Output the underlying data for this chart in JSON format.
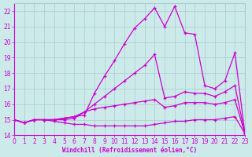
{
  "xlabel": "Windchill (Refroidissement éolien,°C)",
  "xlim": [
    0,
    23
  ],
  "ylim": [
    14,
    22.5
  ],
  "yticks": [
    14,
    15,
    16,
    17,
    18,
    19,
    20,
    21,
    22
  ],
  "xticks": [
    0,
    1,
    2,
    3,
    4,
    5,
    6,
    7,
    8,
    9,
    10,
    11,
    12,
    13,
    14,
    15,
    16,
    17,
    18,
    19,
    20,
    21,
    22,
    23
  ],
  "background_color": "#cceaea",
  "grid_color": "#aacccc",
  "line_color": "#cc00cc",
  "curve1": [
    15.0,
    14.8,
    15.0,
    15.0,
    15.0,
    15.1,
    15.2,
    15.3,
    16.7,
    17.8,
    18.8,
    19.9,
    20.9,
    21.5,
    22.2,
    21.0,
    22.3,
    20.6,
    20.5,
    17.2,
    17.0,
    17.5,
    19.3,
    14.1
  ],
  "curve2": [
    15.0,
    14.8,
    15.0,
    15.0,
    15.0,
    15.1,
    15.2,
    15.5,
    16.0,
    16.5,
    17.0,
    17.5,
    18.0,
    18.5,
    19.2,
    16.4,
    16.5,
    16.8,
    16.7,
    16.7,
    16.5,
    16.8,
    17.2,
    14.1
  ],
  "curve3": [
    15.0,
    14.8,
    15.0,
    15.0,
    15.0,
    15.0,
    15.1,
    15.5,
    15.7,
    15.8,
    15.9,
    16.0,
    16.1,
    16.2,
    16.3,
    15.8,
    15.9,
    16.1,
    16.1,
    16.1,
    16.0,
    16.1,
    16.3,
    14.1
  ],
  "curve4": [
    15.0,
    14.8,
    15.0,
    15.0,
    14.9,
    14.8,
    14.7,
    14.7,
    14.6,
    14.6,
    14.6,
    14.6,
    14.6,
    14.6,
    14.7,
    14.8,
    14.9,
    14.9,
    15.0,
    15.0,
    15.0,
    15.1,
    15.2,
    14.1
  ],
  "figsize": [
    3.2,
    2.0
  ],
  "dpi": 100
}
